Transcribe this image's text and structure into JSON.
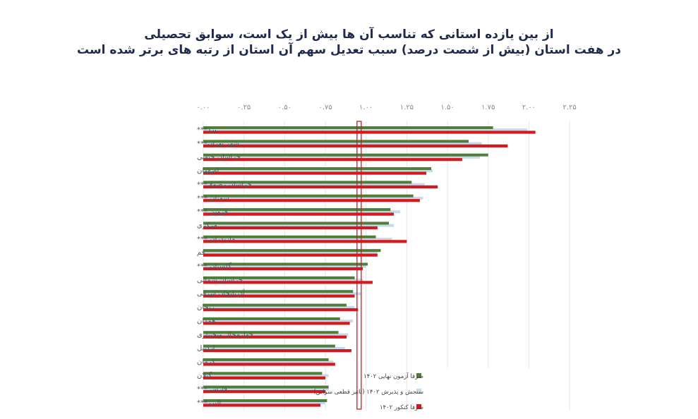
{
  "title": {
    "line1": "از بین یازده استانی که تناسب آن ها بیش از یک است، سوابق تحصیلی",
    "line2": "در هفت استان (بیش از شصت درصد) سبب تعدیل سهم آن استان از رتبه های برتر شده است"
  },
  "colors": {
    "green": "#4e7f3a",
    "lightblue": "#c9d8ea",
    "red": "#d4181e",
    "highlight_box": "#d4181e",
    "grid": "#e6e6e6"
  },
  "chart_data": {
    "type": "bar",
    "orientation": "horizontal",
    "title": "از بین یازده استانی که تناسب آن ها بیش از یک است، سوابق تحصیلی در هفت استان (بیش از شصت درصد) سبب تعدیل سهم آن استان از رتبه های برتر شده است",
    "xlabel": "",
    "ylabel": "",
    "xlim": [
      0,
      2.25
    ],
    "x_ticks": [
      "۰.۰۰",
      "۰.۲۵",
      "۰.۵۰",
      "۰.۷۵",
      "۱.۰۰",
      "۱.۲۵",
      "۱.۵۰",
      "۱.۷۵",
      "۲.۰۰",
      "۲.۲۵"
    ],
    "x_tick_values": [
      0,
      0.25,
      0.5,
      0.75,
      1.0,
      1.25,
      1.5,
      1.75,
      2.0,
      2.25
    ],
    "grid": true,
    "legend_position": "bottom-right",
    "highlight_line_value": 0.955,
    "categories": [
      "یزد***",
      "شهر تهران***",
      "خراسان جنوبی",
      "اصفهان",
      "خراسان رضوی***",
      "سمنان ***",
      "قزوین ***",
      "مرکزی",
      "مازندران ***",
      "قم",
      "گلستان ***",
      "خراسان شمالی",
      "آذربایجان شرقی",
      "زنجان",
      "همدان",
      "چهارمحال وبختیاری",
      "اردبیل",
      "کرمان",
      "گیلان",
      "فارس ***",
      "البرز***"
    ],
    "series": [
      {
        "name": "صرفا آزمون نهایی ۱۴۰۲",
        "color": "#4e7f3a",
        "values": [
          1.78,
          1.63,
          1.75,
          1.4,
          1.28,
          1.29,
          1.15,
          1.14,
          1.06,
          1.09,
          1.01,
          0.93,
          0.92,
          0.88,
          0.84,
          0.83,
          0.81,
          0.77,
          0.73,
          0.77,
          0.76
        ]
      },
      {
        "name": "سنجش و پذیرش ۱۴۰۲ (تاثیر قطعی سوابق)",
        "color": "#c9d8ea",
        "values": [
          1.99,
          1.71,
          1.7,
          1.41,
          1.36,
          1.35,
          1.21,
          1.17,
          1.16,
          1.07,
          1.0,
          0.98,
          0.97,
          0.93,
          0.92,
          0.89,
          0.87,
          0.8,
          0.77,
          0.77,
          0.75
        ]
      },
      {
        "name": "صرفا کنکور ۱۴۰۲",
        "color": "#d4181e",
        "values": [
          2.04,
          1.87,
          1.59,
          1.37,
          1.44,
          1.33,
          1.17,
          1.07,
          1.25,
          1.07,
          0.98,
          1.04,
          0.93,
          0.95,
          0.9,
          0.88,
          0.91,
          0.81,
          0.75,
          0.75,
          0.72
        ]
      }
    ]
  },
  "legend": {
    "items": [
      {
        "label": "صرفا آزمون نهایی ۱۴۰۲",
        "color": "#4e7f3a"
      },
      {
        "label": "سنجش و پذیرش ۱۴۰۲ (تاثیر قطعی سوابق)",
        "color": "#c9d8ea"
      },
      {
        "label": "صرفا کنکور ۱۴۰۲",
        "color": "#d4181e"
      }
    ]
  }
}
